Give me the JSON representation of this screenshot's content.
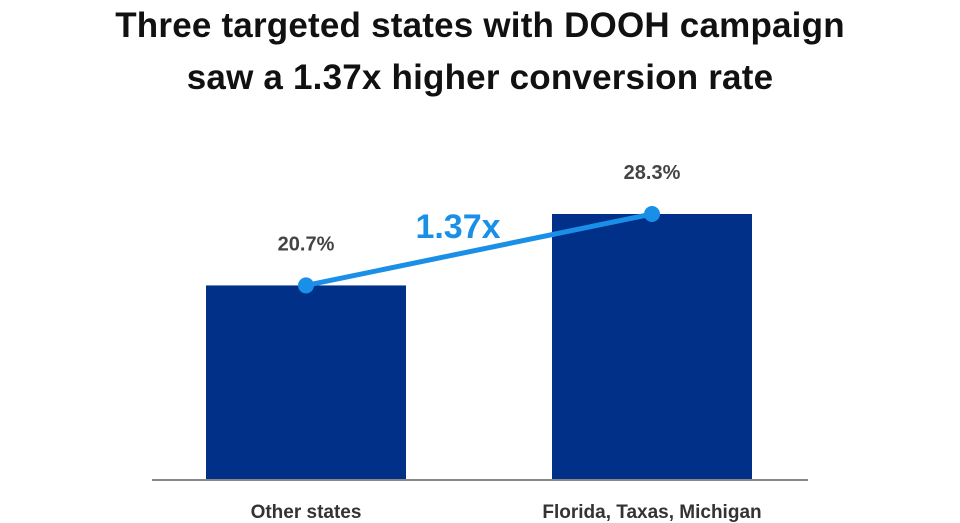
{
  "title_lines": [
    "Three targeted states with DOOH campaign",
    "saw a 1.37x higher conversion rate"
  ],
  "colors": {
    "bar": "#003087",
    "connector": "#1a8fe8",
    "baseline": "#888888"
  },
  "chart_data": {
    "type": "bar",
    "categories": [
      "Other states",
      "Florida, Taxas, Michigan"
    ],
    "values": [
      20.7,
      28.3
    ],
    "value_labels": [
      "20.7%",
      "28.3%"
    ],
    "ratio_label": "1.37x",
    "ylim": [
      0,
      28.3
    ],
    "grid": false,
    "legend": "none"
  }
}
